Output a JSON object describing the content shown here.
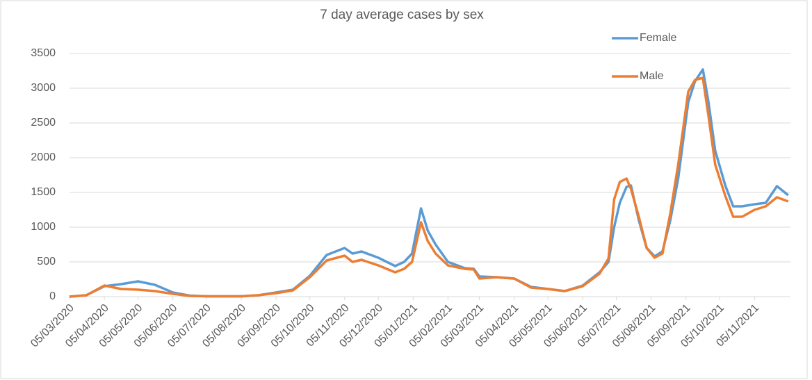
{
  "chart_data": {
    "type": "line",
    "title": "7 day average cases by sex",
    "x": [
      "05/03/2020",
      "20/03/2020",
      "05/04/2020",
      "20/04/2020",
      "05/05/2020",
      "20/05/2020",
      "05/06/2020",
      "20/06/2020",
      "05/07/2020",
      "05/08/2020",
      "20/08/2020",
      "05/09/2020",
      "20/09/2020",
      "05/10/2020",
      "20/10/2020",
      "05/11/2020",
      "12/11/2020",
      "20/11/2020",
      "05/12/2020",
      "20/12/2020",
      "28/12/2020",
      "04/01/2021",
      "12/01/2021",
      "18/01/2021",
      "25/01/2021",
      "05/02/2021",
      "20/02/2021",
      "28/02/2021",
      "05/03/2021",
      "20/03/2021",
      "05/04/2021",
      "20/04/2021",
      "05/05/2021",
      "20/05/2021",
      "05/06/2021",
      "20/06/2021",
      "28/06/2021",
      "03/07/2021",
      "08/07/2021",
      "14/07/2021",
      "18/07/2021",
      "25/07/2021",
      "01/08/2021",
      "08/08/2021",
      "15/08/2021",
      "22/08/2021",
      "29/08/2021",
      "07/09/2021",
      "13/09/2021",
      "20/09/2021",
      "25/09/2021",
      "01/10/2021",
      "10/10/2021",
      "17/10/2021",
      "25/10/2021",
      "05/11/2021",
      "15/11/2021",
      "25/11/2021",
      "05/12/2021"
    ],
    "series": [
      {
        "name": "Female",
        "color": "#5b9bd5",
        "values": [
          0,
          20,
          150,
          180,
          220,
          170,
          60,
          15,
          5,
          5,
          20,
          60,
          100,
          300,
          600,
          700,
          620,
          650,
          560,
          440,
          500,
          620,
          1270,
          950,
          750,
          500,
          410,
          400,
          290,
          280,
          260,
          140,
          110,
          80,
          160,
          350,
          500,
          1000,
          1350,
          1580,
          1600,
          1100,
          700,
          580,
          650,
          1100,
          1700,
          2800,
          3100,
          3270,
          2800,
          2100,
          1600,
          1300,
          1300,
          1330,
          1350,
          1590,
          1460
        ]
      },
      {
        "name": "Male",
        "color": "#ed7d31",
        "values": [
          0,
          20,
          160,
          110,
          100,
          80,
          40,
          10,
          5,
          5,
          20,
          50,
          90,
          280,
          520,
          590,
          500,
          530,
          450,
          350,
          400,
          500,
          1070,
          800,
          620,
          450,
          400,
          390,
          260,
          280,
          260,
          130,
          110,
          80,
          150,
          330,
          550,
          1400,
          1650,
          1700,
          1550,
          1150,
          700,
          560,
          620,
          1200,
          1900,
          2950,
          3120,
          3150,
          2600,
          1900,
          1450,
          1150,
          1150,
          1250,
          1300,
          1430,
          1370
        ]
      }
    ],
    "xlim": [
      "05/03/2020",
      "07/12/2021"
    ],
    "xticks": [
      "05/03/2020",
      "05/04/2020",
      "05/05/2020",
      "05/06/2020",
      "05/07/2020",
      "05/08/2020",
      "05/09/2020",
      "05/10/2020",
      "05/11/2020",
      "05/12/2020",
      "05/01/2021",
      "05/02/2021",
      "05/03/2021",
      "05/04/2021",
      "05/05/2021",
      "05/06/2021",
      "05/07/2021",
      "05/08/2021",
      "05/09/2021",
      "05/10/2021",
      "05/11/2021"
    ],
    "ylim": [
      0,
      3500
    ],
    "yticks": [
      0,
      500,
      1000,
      1500,
      2000,
      2500,
      3000,
      3500
    ],
    "grid": true,
    "legend": "top-right"
  }
}
